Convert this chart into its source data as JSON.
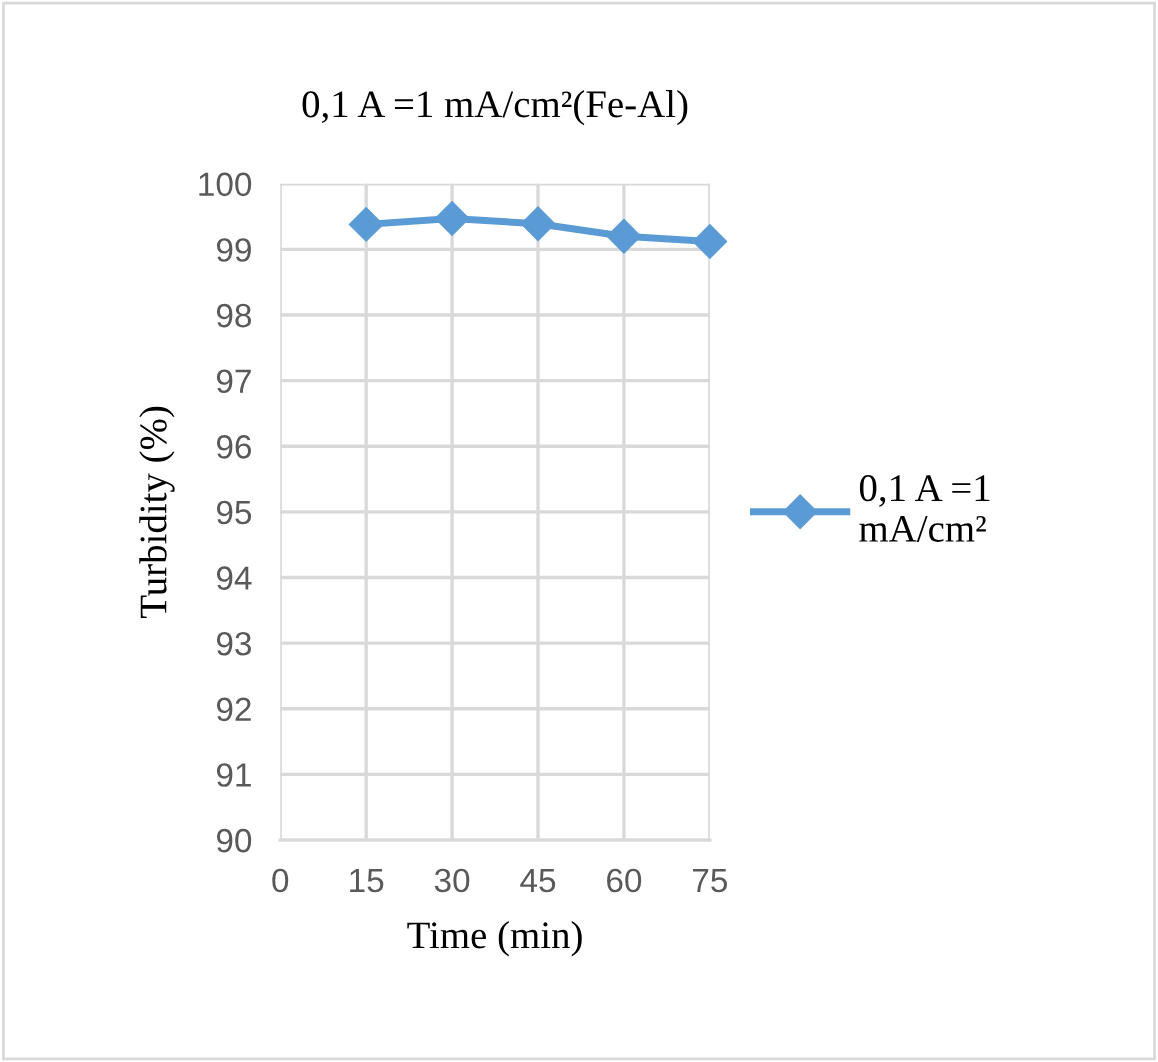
{
  "chart_data": {
    "type": "line",
    "title": "0,1 A =1 mA/cm²(Fe-Al)",
    "xlabel": "Time (min)",
    "ylabel": "Turbidity (%)",
    "x": [
      15,
      30,
      45,
      60,
      75
    ],
    "series": [
      {
        "name": "0,1 A =1\nmA/cm²",
        "color": "#5b9bd5",
        "values": [
          99.38,
          99.47,
          99.39,
          99.2,
          99.12
        ]
      }
    ],
    "xlim": [
      0,
      75
    ],
    "xticks": [
      0,
      15,
      30,
      45,
      60,
      75
    ],
    "ylim": [
      90,
      100
    ],
    "yticks": [
      90,
      91,
      92,
      93,
      94,
      95,
      96,
      97,
      98,
      99,
      100
    ],
    "grid": true,
    "legend": "right",
    "marker": "diamond",
    "line_style": "solid"
  }
}
